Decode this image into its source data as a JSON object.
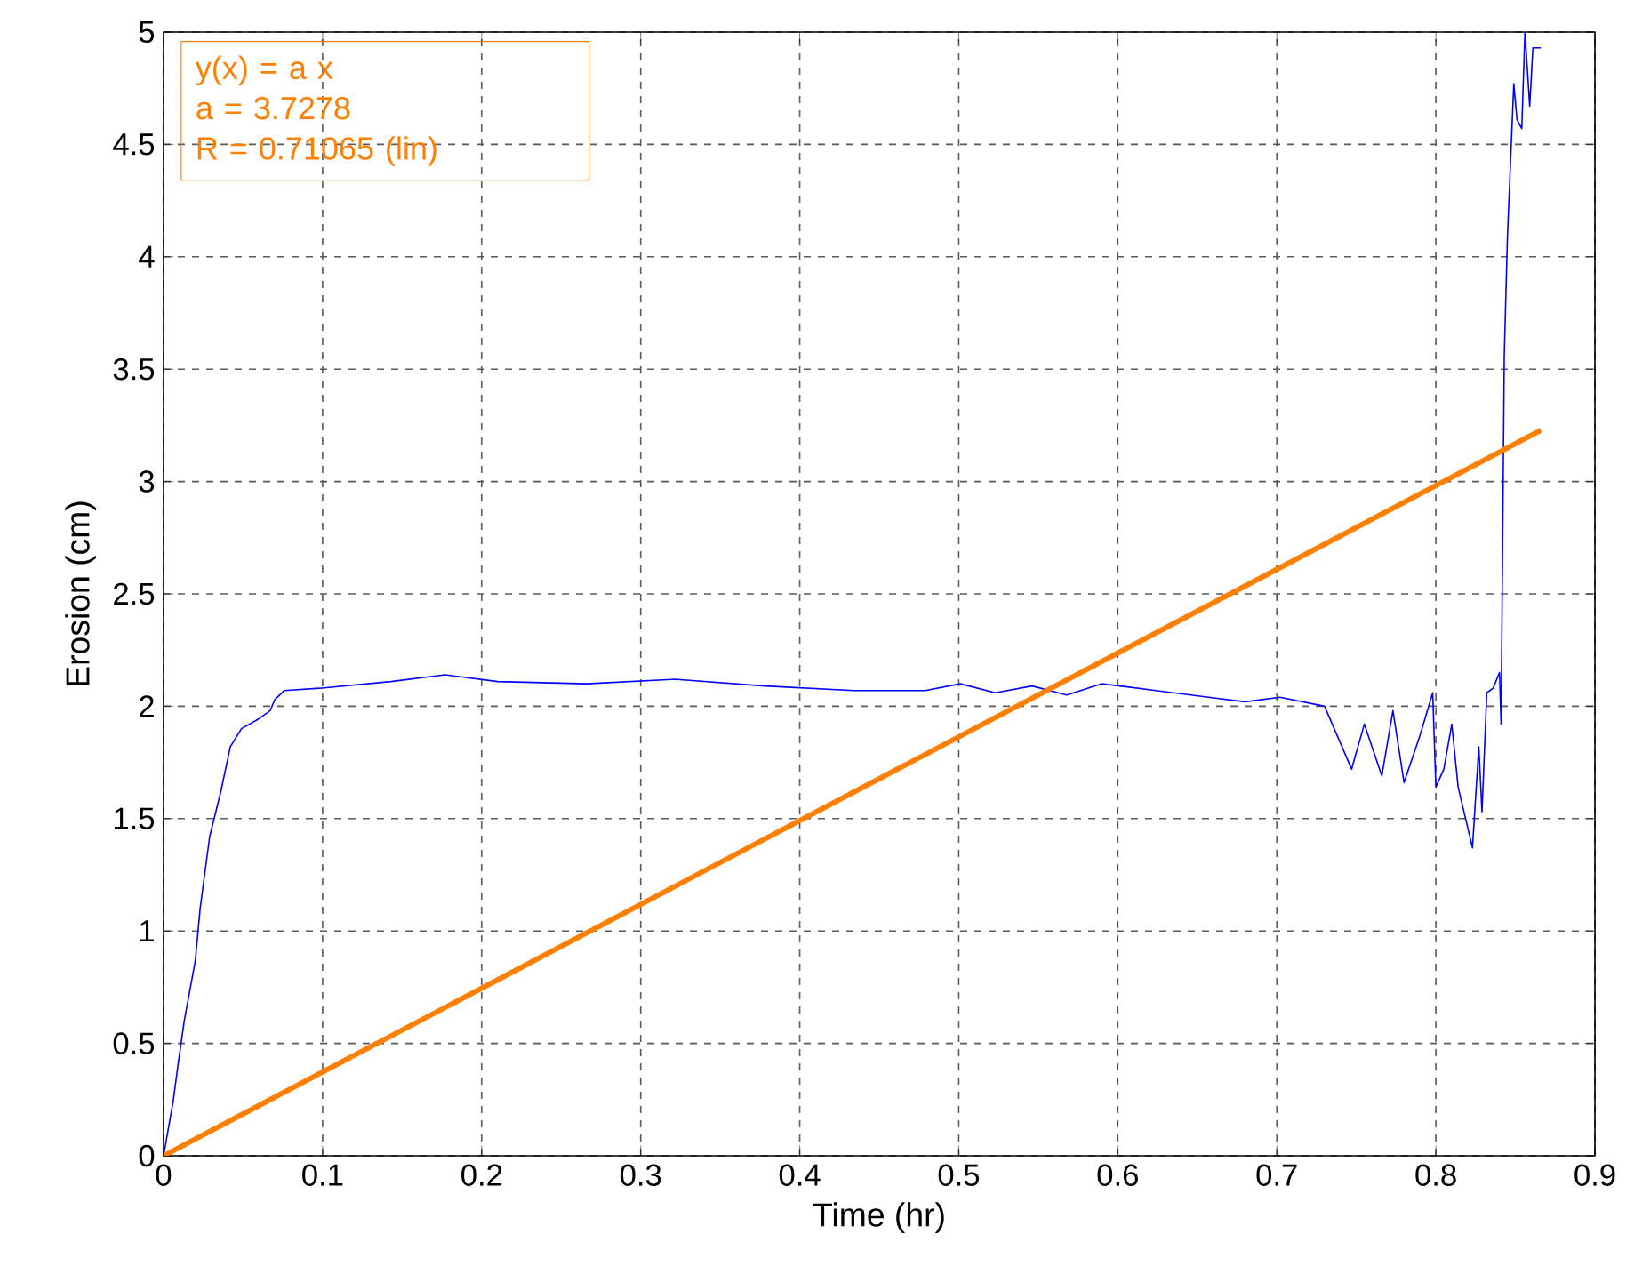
{
  "chart_data": {
    "type": "line",
    "xlabel": "Time (hr)",
    "ylabel": "Erosion (cm)",
    "xlim": [
      0,
      0.9
    ],
    "ylim": [
      0,
      5
    ],
    "xticks": [
      0,
      0.1,
      0.2,
      0.3,
      0.4,
      0.5,
      0.6,
      0.7,
      0.8,
      0.9
    ],
    "yticks": [
      0,
      0.5,
      1,
      1.5,
      2,
      2.5,
      3,
      3.5,
      4,
      4.5,
      5
    ],
    "grid": true,
    "marker": "none",
    "line_style": "solid",
    "annotations": [
      "y(x) = a x",
      "a = 3.7278",
      "R = 0.71065  (lin)"
    ],
    "series": [
      {
        "color": "#0000ff",
        "x": [
          0,
          0.006,
          0.009,
          0.013,
          0.02,
          0.023,
          0.029,
          0.036,
          0.042,
          0.049,
          0.059,
          0.067,
          0.07,
          0.076,
          0.098,
          0.143,
          0.177,
          0.21,
          0.266,
          0.322,
          0.378,
          0.434,
          0.479,
          0.501,
          0.523,
          0.546,
          0.568,
          0.59,
          0.624,
          0.657,
          0.68,
          0.702,
          0.73,
          0.747,
          0.755,
          0.766,
          0.773,
          0.78,
          0.79,
          0.798,
          0.8,
          0.805,
          0.81,
          0.814,
          0.823,
          0.827,
          0.829,
          0.832,
          0.836,
          0.84,
          0.841,
          0.843,
          0.845,
          0.849,
          0.851,
          0.854,
          0.856,
          0.859,
          0.861,
          0.866
        ],
        "values": [
          0,
          0.24,
          0.4,
          0.6,
          0.87,
          1.1,
          1.42,
          1.62,
          1.82,
          1.9,
          1.94,
          1.98,
          2.03,
          2.07,
          2.08,
          2.11,
          2.14,
          2.11,
          2.1,
          2.12,
          2.09,
          2.07,
          2.07,
          2.1,
          2.06,
          2.09,
          2.05,
          2.1,
          2.07,
          2.04,
          2.02,
          2.04,
          2.0,
          1.72,
          1.92,
          1.69,
          1.98,
          1.66,
          1.87,
          2.06,
          1.64,
          1.72,
          1.92,
          1.64,
          1.37,
          1.82,
          1.53,
          2.06,
          2.08,
          2.15,
          1.92,
          3.56,
          4.09,
          4.77,
          4.61,
          4.57,
          5.0,
          4.67,
          4.93,
          4.93
        ]
      },
      {
        "color": "#ff7f00",
        "x": [
          0,
          0.866
        ],
        "values": [
          0,
          3.228
        ]
      }
    ]
  }
}
